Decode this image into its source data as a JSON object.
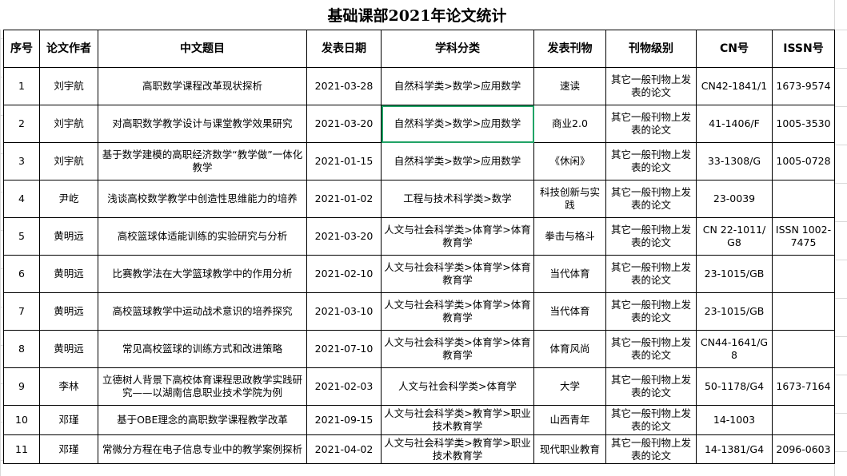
{
  "title": "基础课部2021年论文统计",
  "headers": [
    "序号",
    "论文作者",
    "中文题目",
    "发表日期",
    "学科分类",
    "发表刊物",
    "刊物级别",
    "CN号",
    "ISSN号"
  ],
  "rows": [
    [
      "1",
      "刘宇航",
      "高职数学课程改革现状探析",
      "2021-03-28",
      "自然科学类>数学>应用数学",
      "速读",
      "其它一般刊物上发表的论文",
      "CN42-1841/1",
      "1673-9574"
    ],
    [
      "2",
      "刘宇航",
      "对高职数学教学设计与课堂教学效果研究",
      "2021-03-20",
      "自然科学类>数学>应用数学",
      "商业2.0",
      "其它一般刊物上发表的论文",
      "41-1406/F",
      "1005-3530"
    ],
    [
      "3",
      "刘宇航",
      "基于数学建模的高职经济数学“教学做”一体化教学",
      "2021-01-15",
      "自然科学类>数学>应用数学",
      "《休闲》",
      "其它一般刊物上发表的论文",
      "33-1308/G",
      "1005-0728"
    ],
    [
      "4",
      "尹屹",
      "浅谈高校数学教学中创造性思维能力的培养",
      "2021-01-02",
      "工程与技术科学类>数学",
      "科技创新与实践",
      "其它一般刊物上发表的论文",
      "23-0039",
      ""
    ],
    [
      "5",
      "黄明远",
      "高校篮球体适能训练的实验研究与分析",
      "2021-03-20",
      "人文与社会科学类>体育学>体育教育学",
      "拳击与格斗",
      "其它一般刊物上发表的论文",
      "CN 22-1011/G8",
      "ISSN 1002-7475"
    ],
    [
      "6",
      "黄明远",
      "比赛教学法在大学篮球教学中的作用分析",
      "2021-02-10",
      "人文与社会科学类>体育学>体育教育学",
      "当代体育",
      "其它一般刊物上发表的论文",
      "23-1015/GB",
      ""
    ],
    [
      "7",
      "黄明远",
      "高校篮球教学中运动战术意识的培养探究",
      "2021-03-10",
      "人文与社会科学类>体育学>体育教育学",
      "当代体育",
      "其它一般刊物上发表的论文",
      "23-1015/GB",
      ""
    ],
    [
      "8",
      "黄明远",
      "常见高校篮球的训练方式和改进策略",
      "2021-07-10",
      "人文与社会科学类>体育学>体育教育学",
      "体育风尚",
      "其它一般刊物上发表的论文",
      "CN44-1641/G8",
      ""
    ],
    [
      "9",
      "李林",
      "立德树人背景下高校体育课程思政教学实践研究——以湖南信息职业技术学院为例",
      "2021-02-03",
      "人文与社会科学类>体育学",
      "大学",
      "其它一般刊物上发表的论文",
      "50-1178/G4",
      "1673-7164"
    ],
    [
      "10",
      "邓瑾",
      "基于OBE理念的高职数学课程教学改革",
      "2021-09-15",
      "人文与社会科学类>教育学>职业技术教育学",
      "山西青年",
      "其它一般刊物上发表的论文",
      "14-1003",
      ""
    ],
    [
      "11",
      "邓瑾",
      "常微分方程在电子信息专业中的教学案例探析",
      "2021-04-02",
      "人文与社会科学类>教育学>职业技术教育学",
      "现代职业教育",
      "其它一般刊物上发表的论文",
      "14-1381/G4",
      "2096-0603"
    ]
  ],
  "selected_cell": {
    "row": 2,
    "column": "学科分类"
  },
  "colors": {
    "selection": "#21a366",
    "grid": "#d9d9d9"
  }
}
